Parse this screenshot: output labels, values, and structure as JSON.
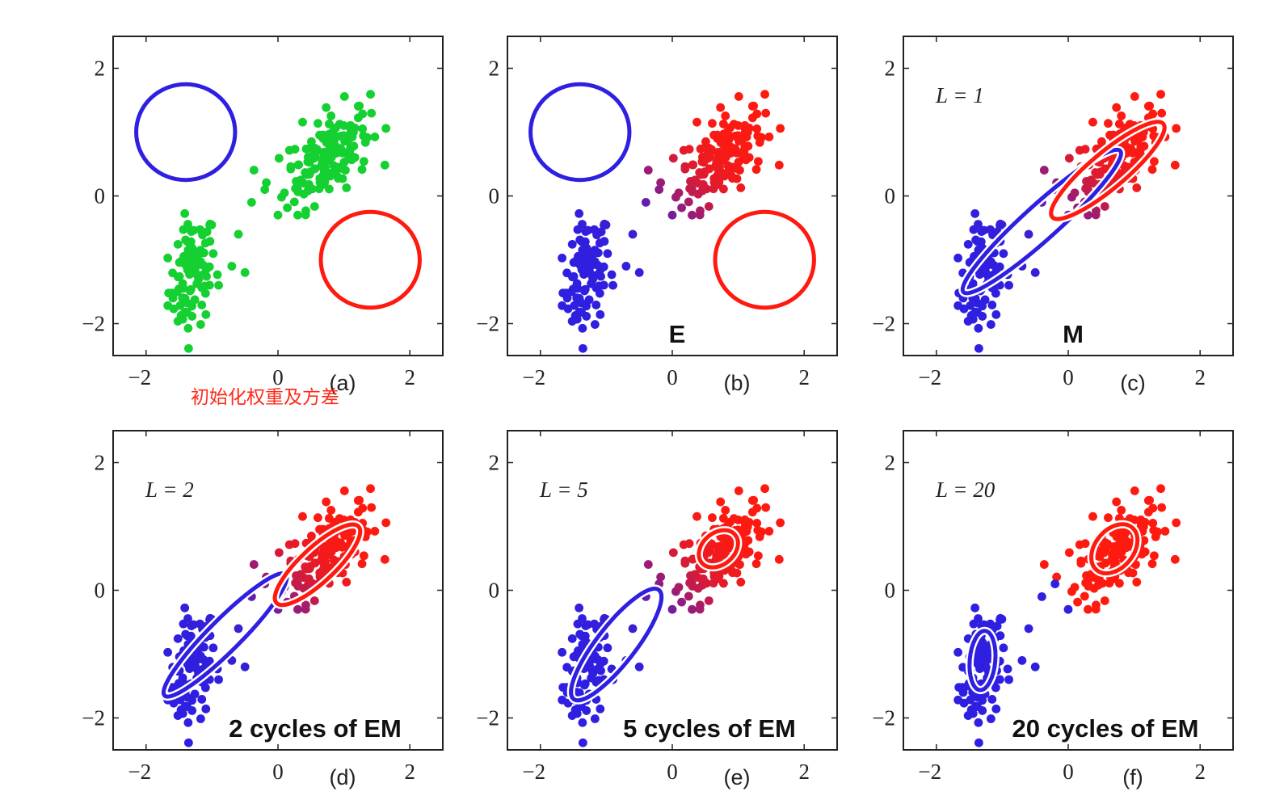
{
  "overlay": {
    "caption": "初始化权重及方差"
  },
  "colors": {
    "cluster_blue": "#2f1fe0",
    "cluster_red": "#ff1a10",
    "unlabeled": "#14d030"
  },
  "chart_data": [
    {
      "type": "scatter",
      "sublabel": "(a)",
      "annotation": "",
      "iteration_label": "",
      "xlim": [
        -2.5,
        2.5
      ],
      "ylim": [
        -2.5,
        2.5
      ],
      "xticks": [
        "−2",
        "0",
        "2"
      ],
      "yticks": [
        "2",
        "0",
        "−2"
      ],
      "point_color_mode": "uniform",
      "ellipses": [
        {
          "color": "#2f1fe0",
          "center": [
            -1.4,
            1.0
          ],
          "radii": [
            0.75,
            0.75
          ],
          "angle_deg": 0
        },
        {
          "color": "#ff1a10",
          "center": [
            1.4,
            -1.0
          ],
          "radii": [
            0.75,
            0.75
          ],
          "angle_deg": 0
        }
      ]
    },
    {
      "type": "scatter",
      "sublabel": "(b)",
      "annotation": "E",
      "iteration_label": "",
      "xlim": [
        -2.5,
        2.5
      ],
      "ylim": [
        -2.5,
        2.5
      ],
      "xticks": [
        "−2",
        "0",
        "2"
      ],
      "yticks": [
        "2",
        "0",
        "−2"
      ],
      "point_color_mode": "soft",
      "ellipses": [
        {
          "color": "#2f1fe0",
          "center": [
            -1.4,
            1.0
          ],
          "radii": [
            0.75,
            0.75
          ],
          "angle_deg": 0
        },
        {
          "color": "#ff1a10",
          "center": [
            1.4,
            -1.0
          ],
          "radii": [
            0.75,
            0.75
          ],
          "angle_deg": 0
        }
      ]
    },
    {
      "type": "scatter",
      "sublabel": "(c)",
      "annotation": "M",
      "iteration_label": "L = 1",
      "xlim": [
        -2.5,
        2.5
      ],
      "ylim": [
        -2.5,
        2.5
      ],
      "xticks": [
        "−2",
        "0",
        "2"
      ],
      "yticks": [
        "2",
        "0",
        "−2"
      ],
      "point_color_mode": "soft",
      "ellipses": [
        {
          "color": "#2f1fe0",
          "center": [
            -0.4,
            -0.4
          ],
          "radii": [
            1.6,
            0.27
          ],
          "angle_deg": 42
        },
        {
          "color": "#ff1a10",
          "center": [
            0.6,
            0.4
          ],
          "radii": [
            1.1,
            0.28
          ],
          "angle_deg": 40
        }
      ]
    },
    {
      "type": "scatter",
      "sublabel": "(d)",
      "annotation": "2 cycles of EM",
      "iteration_label": "L = 2",
      "xlim": [
        -2.5,
        2.5
      ],
      "ylim": [
        -2.5,
        2.5
      ],
      "xticks": [
        "−2",
        "0",
        "2"
      ],
      "yticks": [
        "2",
        "0",
        "−2"
      ],
      "point_color_mode": "soft",
      "ellipses": [
        {
          "color": "#2f1fe0",
          "center": [
            -0.8,
            -0.7
          ],
          "radii": [
            1.3,
            0.25
          ],
          "angle_deg": 45
        },
        {
          "color": "#ff1a10",
          "center": [
            0.6,
            0.4
          ],
          "radii": [
            0.85,
            0.27
          ],
          "angle_deg": 43
        }
      ]
    },
    {
      "type": "scatter",
      "sublabel": "(e)",
      "annotation": "5 cycles of EM",
      "iteration_label": "L = 5",
      "xlim": [
        -2.5,
        2.5
      ],
      "ylim": [
        -2.5,
        2.5
      ],
      "xticks": [
        "−2",
        "0",
        "2"
      ],
      "yticks": [
        "2",
        "0",
        "−2"
      ],
      "point_color_mode": "soft",
      "ellipses": [
        {
          "color": "#2f1fe0",
          "center": [
            -0.85,
            -0.85
          ],
          "radii": [
            1.05,
            0.3
          ],
          "angle_deg": 52
        },
        {
          "color": "#ff1a10",
          "center": [
            0.7,
            0.65
          ],
          "radii": [
            0.33,
            0.25
          ],
          "angle_deg": 40
        }
      ]
    },
    {
      "type": "scatter",
      "sublabel": "(f)",
      "annotation": "20 cycles of EM",
      "iteration_label": "L = 20",
      "xlim": [
        -2.5,
        2.5
      ],
      "ylim": [
        -2.5,
        2.5
      ],
      "xticks": [
        "−2",
        "0",
        "2"
      ],
      "yticks": [
        "2",
        "0",
        "−2"
      ],
      "point_color_mode": "hard",
      "ellipses": [
        {
          "color": "#2f1fe0",
          "center": [
            -1.3,
            -1.1
          ],
          "radii": [
            0.45,
            0.2
          ],
          "angle_deg": 85
        },
        {
          "color": "#ff1a10",
          "center": [
            0.7,
            0.65
          ],
          "radii": [
            0.42,
            0.3
          ],
          "angle_deg": 50
        }
      ]
    }
  ]
}
